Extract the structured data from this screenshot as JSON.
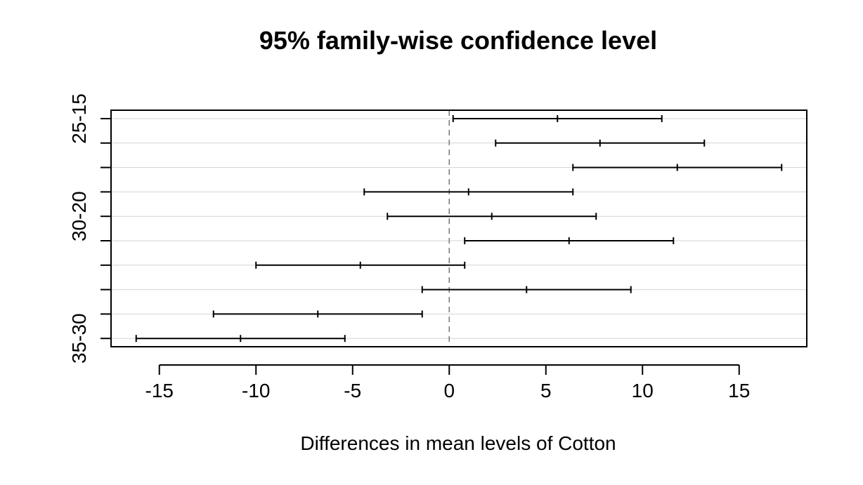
{
  "chart_data": {
    "type": "interval",
    "title": "95% family-wise confidence level",
    "xlabel": "Differences in mean levels of Cotton",
    "ylabel": "",
    "xlim": [
      -17.5,
      18.5
    ],
    "xticks": [
      "-15",
      "-10",
      "-5",
      "0",
      "5",
      "10",
      "15"
    ],
    "x_tick_values": [
      -15,
      -10,
      -5,
      0,
      5,
      10,
      15
    ],
    "reference_line": 0,
    "grid": "horizontal",
    "y_tick_labels": [
      "25-15",
      "",
      "",
      "",
      "30-20",
      "",
      "",
      "",
      "",
      "35-30"
    ],
    "intervals": [
      {
        "lwr": 0.2,
        "diff": 5.6,
        "upr": 11.0
      },
      {
        "lwr": 2.4,
        "diff": 7.8,
        "upr": 13.2
      },
      {
        "lwr": 6.4,
        "diff": 11.8,
        "upr": 17.2
      },
      {
        "lwr": -4.4,
        "diff": 1.0,
        "upr": 6.4
      },
      {
        "lwr": -3.2,
        "diff": 2.2,
        "upr": 7.6
      },
      {
        "lwr": 0.8,
        "diff": 6.2,
        "upr": 11.6
      },
      {
        "lwr": -10.0,
        "diff": -4.6,
        "upr": 0.8
      },
      {
        "lwr": -1.4,
        "diff": 4.0,
        "upr": 9.4
      },
      {
        "lwr": -12.2,
        "diff": -6.8,
        "upr": -1.4
      },
      {
        "lwr": -16.2,
        "diff": -10.8,
        "upr": -5.4
      }
    ]
  }
}
